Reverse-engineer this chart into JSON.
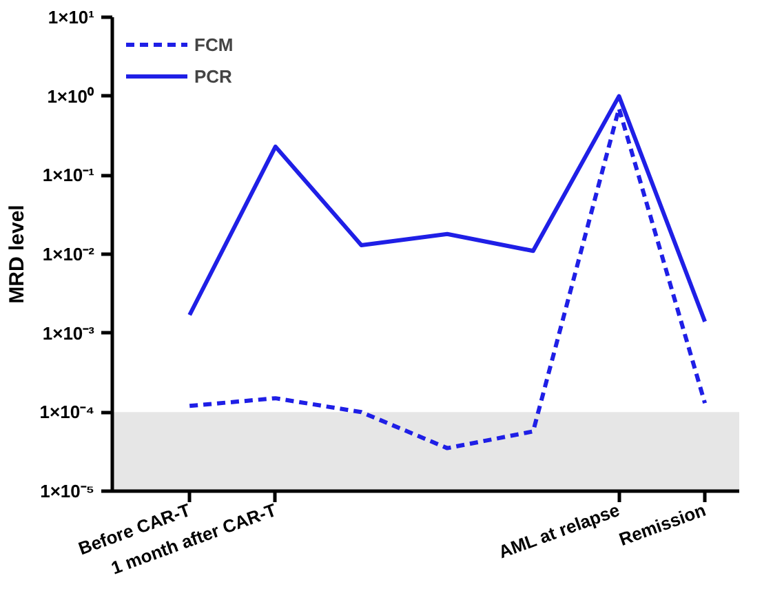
{
  "chart_data": {
    "type": "line",
    "ylabel": "MRD level",
    "categories": [
      "Before CAR-T",
      "1 month after CAR-T",
      null,
      null,
      null,
      "AML at relapse",
      "Remission"
    ],
    "series": [
      {
        "name": "FCM",
        "color": "#1f1fe6",
        "line_style": "dashed",
        "values": [
          0.00012,
          0.00015,
          0.0001,
          3.5e-05,
          5.7e-05,
          0.7,
          0.00013
        ]
      },
      {
        "name": "PCR",
        "color": "#1f1fe6",
        "line_style": "solid",
        "values": [
          0.0017,
          0.23,
          0.013,
          0.018,
          0.011,
          1,
          0.0014
        ]
      }
    ],
    "log": true,
    "ylim": [
      1e-05,
      10
    ],
    "yticks": [
      {
        "value": 1e-05,
        "label": "1×10⁻⁵"
      },
      {
        "value": 0.0001,
        "label": "1×10⁻⁴"
      },
      {
        "value": 0.001,
        "label": "1×10⁻³"
      },
      {
        "value": 0.01,
        "label": "1×10⁻²"
      },
      {
        "value": 0.1,
        "label": "1×10⁻¹"
      },
      {
        "value": 1,
        "label": "1×10⁰"
      },
      {
        "value": 10,
        "label": "1×10¹"
      }
    ],
    "bands": [
      {
        "axis": "y",
        "from": 1e-05,
        "to": 0.0001,
        "color": "#e6e6e6"
      }
    ],
    "grid": false,
    "legend": "top left",
    "marker": "none"
  }
}
